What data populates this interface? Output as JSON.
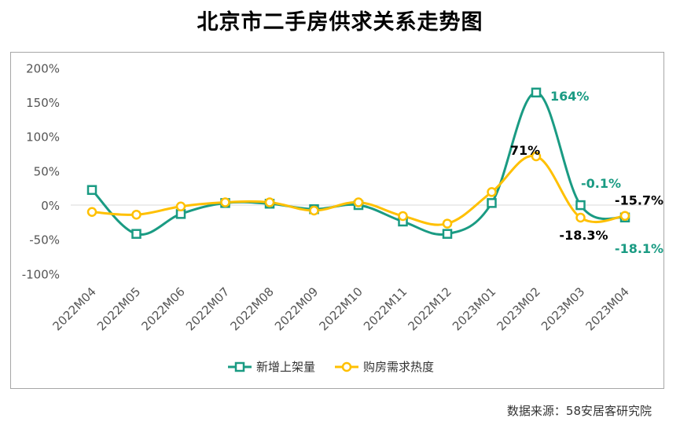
{
  "page": {
    "source": "数据来源：58安居客研究院"
  },
  "chart_data": {
    "type": "line",
    "title": "北京市二手房供求关系走势图",
    "categories": [
      "2022M04",
      "2022M05",
      "2022M06",
      "2022M07",
      "2022M08",
      "2022M09",
      "2022M10",
      "2022M11",
      "2022M12",
      "2023M01",
      "2023M02",
      "2023M03",
      "2023M04"
    ],
    "ylim": [
      -100,
      200
    ],
    "yticks": [
      -100,
      -50,
      0,
      50,
      100,
      150,
      200
    ],
    "ytick_labels": [
      "-100%",
      "-50%",
      "0%",
      "50%",
      "100%",
      "150%",
      "200%"
    ],
    "grid": false,
    "legend_position": "bottom",
    "series": [
      {
        "name": "新增上架量",
        "color": "#1a9b83",
        "marker": "square",
        "values": [
          22,
          -42,
          -13,
          3,
          2,
          -6,
          0,
          -24,
          -42,
          3,
          164,
          -0.1,
          -18.1
        ]
      },
      {
        "name": "购房需求热度",
        "color": "#ffc000",
        "marker": "circle",
        "values": [
          -10,
          -14,
          -2,
          4,
          4,
          -8,
          4,
          -16,
          -27,
          19,
          71,
          -18.3,
          -15.7
        ]
      }
    ],
    "annotations": [
      {
        "text": "164%",
        "series": 0,
        "index": 10,
        "color": "#1a9b83"
      },
      {
        "text": "-0.1%",
        "series": 0,
        "index": 11,
        "color": "#1a9b83"
      },
      {
        "text": "-18.1%",
        "series": 0,
        "index": 12,
        "color": "#1a9b83"
      },
      {
        "text": "71%",
        "series": 1,
        "index": 10,
        "color": "#000000"
      },
      {
        "text": "-18.3%",
        "series": 1,
        "index": 11,
        "color": "#000000"
      },
      {
        "text": "-15.7%",
        "series": 1,
        "index": 12,
        "color": "#000000"
      }
    ]
  }
}
